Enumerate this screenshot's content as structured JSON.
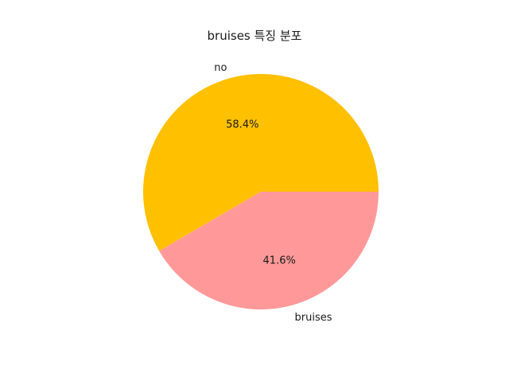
{
  "chart_data": {
    "type": "pie",
    "title": "bruises 특징 분포",
    "categories": [
      "no",
      "bruises"
    ],
    "values": [
      58.4,
      41.6
    ],
    "value_labels": [
      "58.4%",
      "41.6%"
    ],
    "colors": [
      "#FFC000",
      "#FF9999"
    ],
    "start_angle_deg": 0,
    "direction": "counterclockwise",
    "legend": "none"
  }
}
